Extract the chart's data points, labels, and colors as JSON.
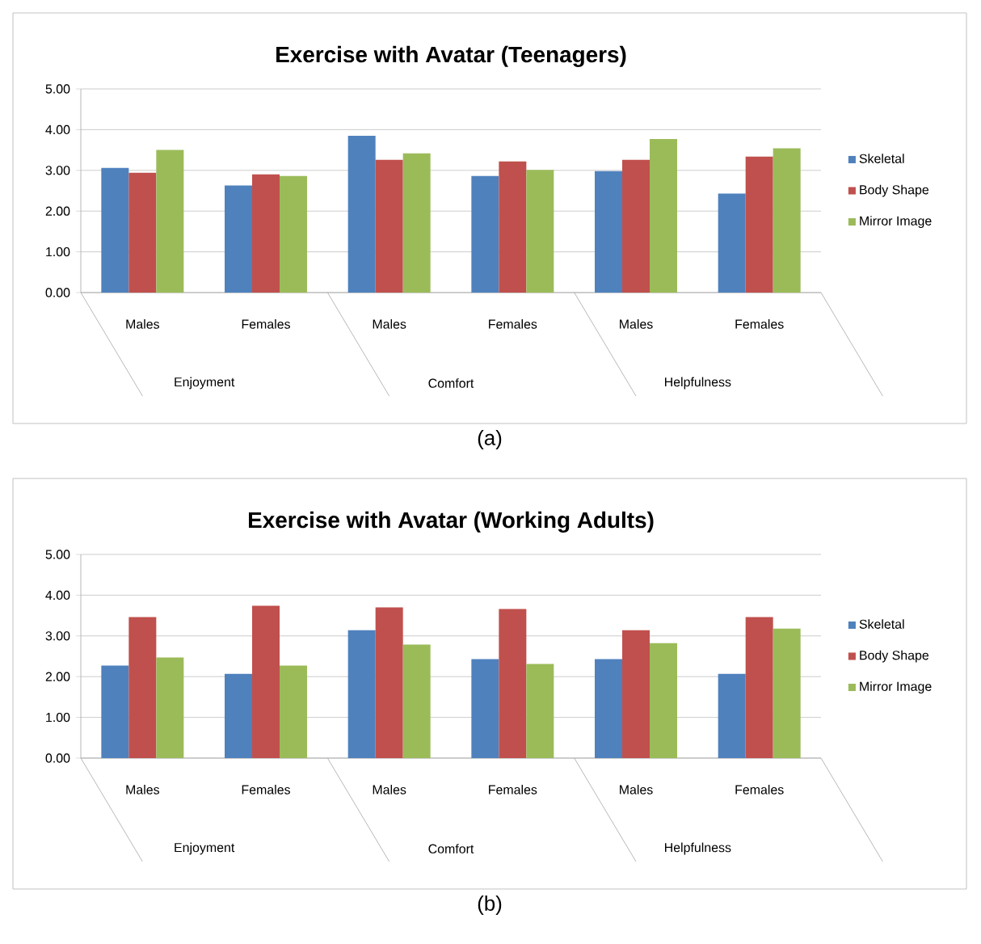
{
  "chart_data": [
    {
      "type": "bar",
      "title": "Exercise with Avatar (Teenagers)",
      "categories": [
        "Males",
        "Females",
        "Males",
        "Females",
        "Males",
        "Females"
      ],
      "series": [
        {
          "name": "Skeletal",
          "color": "#4f81bd",
          "values": [
            3.06,
            2.63,
            3.85,
            2.86,
            2.98,
            2.43
          ]
        },
        {
          "name": "Body Shape",
          "color": "#c0504d",
          "values": [
            2.94,
            2.9,
            3.26,
            3.22,
            3.26,
            3.34
          ]
        },
        {
          "name": "Mirror Image",
          "color": "#9bbb59",
          "values": [
            3.5,
            2.86,
            3.42,
            3.01,
            3.77,
            3.54
          ]
        }
      ],
      "ylim": [
        0,
        5
      ],
      "yticks": [
        {
          "value": 0,
          "label": "0.00"
        },
        {
          "value": 1,
          "label": "1.00"
        },
        {
          "value": 2,
          "label": "2.00"
        },
        {
          "value": 3,
          "label": "3.00"
        },
        {
          "value": 4,
          "label": "4.00"
        },
        {
          "value": 5,
          "label": "5.00"
        }
      ],
      "grid": "y",
      "legend": "right",
      "annotations": [
        "Enjoyment",
        "Comfort",
        "Helpfulness",
        "(a)"
      ]
    },
    {
      "type": "bar",
      "title": "Exercise with Avatar (Working Adults)",
      "categories": [
        "Males",
        "Females",
        "Males",
        "Females",
        "Males",
        "Females"
      ],
      "series": [
        {
          "name": "Skeletal",
          "color": "#4f81bd",
          "values": [
            2.27,
            2.07,
            3.14,
            2.43,
            2.43,
            2.07
          ]
        },
        {
          "name": "Body Shape",
          "color": "#c0504d",
          "values": [
            3.46,
            3.74,
            3.7,
            3.66,
            3.14,
            3.46
          ]
        },
        {
          "name": "Mirror Image",
          "color": "#9bbb59",
          "values": [
            2.47,
            2.27,
            2.79,
            2.31,
            2.82,
            3.18
          ]
        }
      ],
      "ylim": [
        0,
        5
      ],
      "yticks": [
        {
          "value": 0,
          "label": "0.00"
        },
        {
          "value": 1,
          "label": "1.00"
        },
        {
          "value": 2,
          "label": "2.00"
        },
        {
          "value": 3,
          "label": "3.00"
        },
        {
          "value": 4,
          "label": "4.00"
        },
        {
          "value": 5,
          "label": "5.00"
        }
      ],
      "grid": "y",
      "legend": "right",
      "annotations": [
        "Enjoyment",
        "Comfort",
        "Helpfulness",
        "(b)"
      ]
    }
  ]
}
